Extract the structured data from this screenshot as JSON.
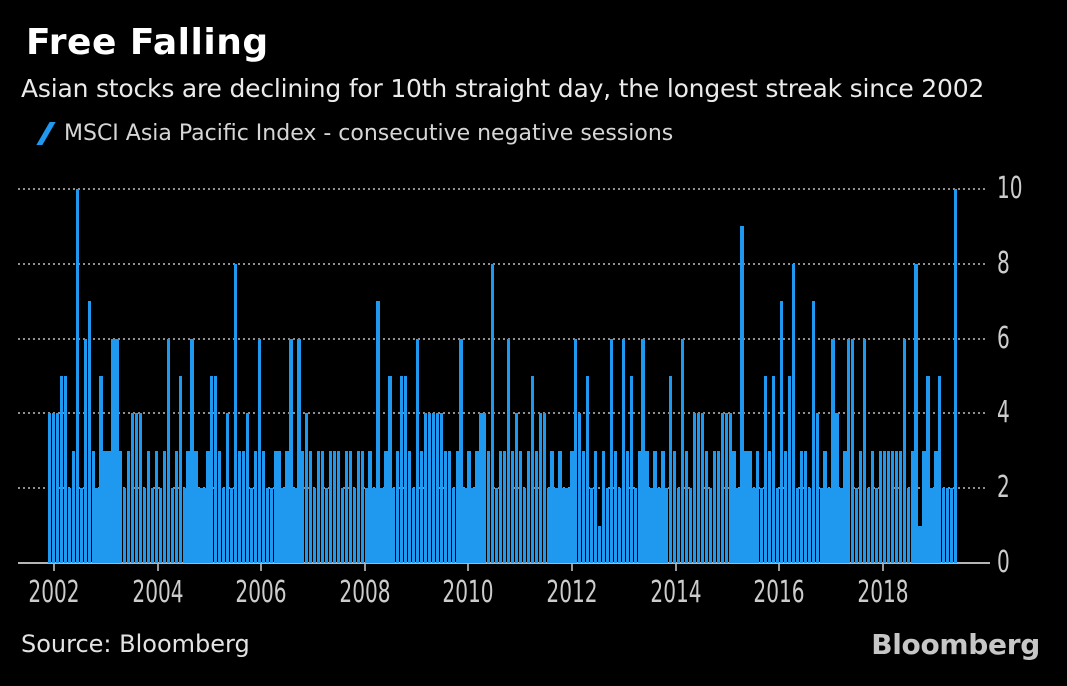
{
  "header": {
    "title": "Free Falling",
    "subtitle": "Asian stocks are declining for 10th straight day, the longest streak since 2002"
  },
  "legend": {
    "label": "MSCI Asia Pacific Index - consecutive negative sessions",
    "marker": "slash-icon"
  },
  "chart_data": {
    "type": "bar",
    "title": "Free Falling",
    "series_name": "MSCI Asia Pacific Index - consecutive negative sessions",
    "ylabel": "consecutive negative sessions",
    "ylim": [
      0,
      10
    ],
    "y_ticks": [
      0,
      2,
      4,
      6,
      8,
      10
    ],
    "y_axis_side": "right",
    "grid": "dotted-horizontal",
    "legend_position": "top-left",
    "x_start_year": 2002,
    "x_end_year": 2018.9,
    "x_tick_labels": [
      "2002",
      "2004",
      "2006",
      "2008",
      "2010",
      "2012",
      "2014",
      "2016",
      "2018"
    ],
    "values": [
      4,
      4,
      4,
      5,
      5,
      2,
      3,
      10,
      2,
      6,
      7,
      3,
      2,
      5,
      3,
      3,
      6,
      6,
      3,
      2,
      3,
      4,
      4,
      4,
      2,
      3,
      2,
      3,
      2,
      3,
      6,
      2,
      3,
      5,
      2,
      3,
      6,
      3,
      2,
      2,
      3,
      5,
      5,
      3,
      2,
      4,
      2,
      8,
      3,
      3,
      4,
      2,
      3,
      6,
      3,
      2,
      2,
      3,
      3,
      2,
      3,
      6,
      2,
      6,
      3,
      4,
      3,
      2,
      3,
      3,
      2,
      3,
      3,
      3,
      2,
      3,
      3,
      2,
      3,
      3,
      2,
      3,
      2,
      7,
      2,
      3,
      5,
      2,
      3,
      5,
      5,
      3,
      2,
      6,
      3,
      4,
      4,
      4,
      4,
      4,
      3,
      3,
      2,
      3,
      6,
      2,
      3,
      2,
      3,
      4,
      4,
      3,
      8,
      2,
      3,
      3,
      6,
      3,
      4,
      3,
      2,
      3,
      5,
      3,
      4,
      4,
      2,
      3,
      2,
      3,
      2,
      2,
      3,
      6,
      4,
      3,
      5,
      2,
      3,
      1,
      3,
      2,
      6,
      3,
      2,
      6,
      3,
      5,
      2,
      3,
      6,
      3,
      2,
      3,
      2,
      3,
      2,
      5,
      3,
      2,
      6,
      3,
      2,
      4,
      4,
      4,
      3,
      2,
      3,
      3,
      4,
      4,
      4,
      3,
      2,
      9,
      3,
      3,
      2,
      3,
      2,
      5,
      3,
      5,
      2,
      7,
      3,
      5,
      8,
      2,
      3,
      3,
      2,
      7,
      4,
      2,
      3,
      2,
      6,
      4,
      2,
      3,
      6,
      6,
      2,
      3,
      6,
      2,
      3,
      2,
      3,
      3,
      3,
      3,
      3,
      3,
      6,
      2,
      3,
      8,
      1,
      3,
      5,
      2,
      3,
      5,
      2,
      2,
      2,
      10
    ]
  },
  "footer": {
    "source": "Source: Bloomberg",
    "brand": "Bloomberg"
  },
  "colors": {
    "background": "#000000",
    "bar": "#1f99f0",
    "grid": "#8f8f8f",
    "axis_line": "#b5b5b5",
    "tick": "#999999",
    "axis_label": "#cccccc",
    "title": "#ffffff",
    "subtitle": "#ebebeb",
    "legend_text": "#d6d6d6",
    "source_text": "#e3e3e3",
    "brand_text": "#c6c6c6"
  }
}
